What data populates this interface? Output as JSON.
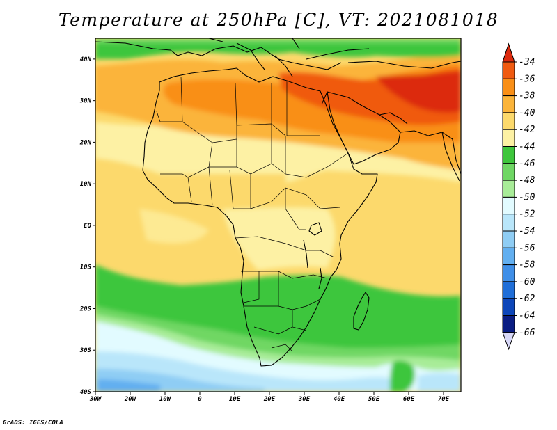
{
  "title": "Temperature at 250hPa [C], VT: 2021081018",
  "credit": "GrADS: IGES/COLA",
  "map": {
    "region": "Africa",
    "projection": "latlon",
    "lon_range": [
      -30,
      75
    ],
    "lat_range": [
      -40,
      45
    ],
    "lon_ticks": [
      "30W",
      "20W",
      "10W",
      "0",
      "10E",
      "20E",
      "30E",
      "40E",
      "50E",
      "60E",
      "70E"
    ],
    "lat_ticks": [
      "40N",
      "30N",
      "20N",
      "10N",
      "EQ",
      "10S",
      "20S",
      "30S",
      "40S"
    ]
  },
  "colorbar": {
    "labels": [
      "-34",
      "-36",
      "-38",
      "-40",
      "-42",
      "-44",
      "-46",
      "-48",
      "-50",
      "-52",
      "-54",
      "-56",
      "-58",
      "-60",
      "-62",
      "-64",
      "-66"
    ],
    "colors": [
      "#dc2a0e",
      "#f05a10",
      "#f98f17",
      "#fbb43a",
      "#fcd96c",
      "#fdf1a4",
      "#3ec63c",
      "#6fd764",
      "#a8ec98",
      "#e2fbff",
      "#b9e6fa",
      "#8fcdf4",
      "#62aff0",
      "#3f8fe8",
      "#1f6ed8",
      "#0d46b9",
      "#0a1d83"
    ],
    "top_arrow_color": "#dc2a0e",
    "bottom_arrow_color": "#d8d8f8"
  }
}
